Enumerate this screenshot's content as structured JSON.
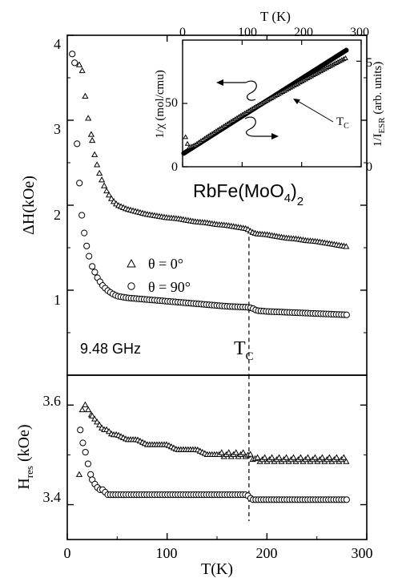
{
  "chart_data": [
    {
      "name": "linewidth-panel",
      "type": "scatter",
      "ylabel": "ΔH(kOe)",
      "ylim": [
        0,
        4
      ],
      "yticks": [
        "1",
        "2",
        "3",
        "4"
      ],
      "xlim": [
        0,
        300
      ],
      "frequency_label": "9.48 GHz",
      "tc_label": "T",
      "tc_sub": "C",
      "tc_value": 182,
      "legend": [
        {
          "marker": "triangle",
          "label": "θ = 0°"
        },
        {
          "marker": "circle",
          "label": "θ = 90°"
        }
      ],
      "series": [
        {
          "marker": "triangle",
          "x": [
            12,
            15,
            18,
            21,
            24,
            28,
            32,
            36,
            40,
            45,
            50,
            60,
            70,
            80,
            90,
            100,
            110,
            120,
            130,
            140,
            150,
            160,
            170,
            180,
            185,
            190,
            200,
            210,
            220,
            230,
            240,
            250,
            260,
            270,
            280
          ],
          "y": [
            3.65,
            3.58,
            3.28,
            3.02,
            2.83,
            2.55,
            2.38,
            2.25,
            2.15,
            2.06,
            2.0,
            1.95,
            1.92,
            1.89,
            1.87,
            1.85,
            1.84,
            1.82,
            1.8,
            1.79,
            1.77,
            1.76,
            1.74,
            1.72,
            1.68,
            1.66,
            1.65,
            1.63,
            1.61,
            1.6,
            1.58,
            1.57,
            1.55,
            1.53,
            1.51
          ]
        },
        {
          "marker": "circle",
          "x": [
            5,
            8,
            10,
            13,
            15,
            18,
            21,
            25,
            30,
            35,
            40,
            45,
            50,
            60,
            70,
            80,
            90,
            100,
            120,
            140,
            160,
            180,
            185,
            190,
            200,
            220,
            240,
            260,
            280
          ],
          "y": [
            3.78,
            3.65,
            2.62,
            2.13,
            1.82,
            1.6,
            1.43,
            1.28,
            1.15,
            1.06,
            1.0,
            0.96,
            0.93,
            0.91,
            0.9,
            0.89,
            0.88,
            0.87,
            0.85,
            0.83,
            0.81,
            0.8,
            0.79,
            0.76,
            0.75,
            0.74,
            0.73,
            0.72,
            0.71
          ]
        }
      ]
    },
    {
      "name": "resonance-field-panel",
      "type": "scatter",
      "xlabel": "T(K)",
      "ylabel_main": "H",
      "ylabel_sub": "res",
      "ylabel_unit": " (kOe)",
      "ylim": [
        3.33,
        3.66
      ],
      "yticks": [
        "3.4",
        "3.6"
      ],
      "xticks": [
        "0",
        "100",
        "200",
        "300"
      ],
      "xlim": [
        0,
        300
      ],
      "series": [
        {
          "marker": "triangle",
          "x": [
            12,
            15,
            18,
            21,
            24,
            28,
            32,
            36,
            40,
            45,
            50,
            60,
            70,
            80,
            90,
            100,
            110,
            120,
            130,
            140,
            150,
            160,
            170,
            180,
            190,
            200,
            210,
            220,
            230,
            240,
            250,
            260,
            270,
            280
          ],
          "y": [
            3.46,
            3.59,
            3.6,
            3.59,
            3.58,
            3.57,
            3.56,
            3.55,
            3.55,
            3.54,
            3.54,
            3.53,
            3.53,
            3.52,
            3.52,
            3.52,
            3.51,
            3.51,
            3.51,
            3.5,
            3.5,
            3.5,
            3.5,
            3.5,
            3.49,
            3.49,
            3.49,
            3.49,
            3.49,
            3.49,
            3.49,
            3.49,
            3.49,
            3.49
          ]
        },
        {
          "marker": "circle",
          "x": [
            13,
            16,
            19,
            22,
            25,
            28,
            32,
            36,
            40,
            45,
            50,
            60,
            70,
            80,
            90,
            100,
            120,
            140,
            160,
            180,
            185,
            190,
            200,
            220,
            240,
            260,
            280
          ],
          "y": [
            3.55,
            3.52,
            3.5,
            3.47,
            3.45,
            3.44,
            3.43,
            3.43,
            3.42,
            3.42,
            3.42,
            3.42,
            3.42,
            3.42,
            3.42,
            3.42,
            3.42,
            3.42,
            3.42,
            3.42,
            3.41,
            3.41,
            3.41,
            3.41,
            3.41,
            3.41,
            3.41
          ]
        }
      ]
    },
    {
      "name": "inset",
      "type": "scatter",
      "xlabel": "T (K)",
      "xticks": [
        "0",
        "100",
        "200",
        "300"
      ],
      "xlim": [
        0,
        300
      ],
      "ylabel_left": "1/χ (mol/cmu)",
      "yticks_left": [
        "0",
        "50"
      ],
      "ylim_left": [
        0,
        100
      ],
      "ylabel_right_main": "1/I",
      "ylabel_right_sub": "ESR",
      "ylabel_right_unit": " (arb. units)",
      "yticks_right": [
        "0",
        "5"
      ],
      "ylim_right": [
        0,
        6
      ],
      "tc_label": "T",
      "tc_sub": "C",
      "compound_parts": [
        "RbFe(MoO",
        "4",
        ")",
        "2"
      ],
      "series": [
        {
          "marker": "filled-circle",
          "x": [
            0,
            275
          ],
          "y": [
            10,
            92
          ]
        },
        {
          "marker": "triangle",
          "x": [
            5,
            10,
            20,
            40,
            60,
            80,
            100,
            120,
            140,
            160,
            180,
            200,
            220,
            240,
            260,
            275
          ],
          "y": [
            1.4,
            0.9,
            1.0,
            1.38,
            1.74,
            2.1,
            2.45,
            2.78,
            3.1,
            3.41,
            3.72,
            4.03,
            4.34,
            4.64,
            4.94,
            5.15
          ]
        }
      ]
    }
  ]
}
